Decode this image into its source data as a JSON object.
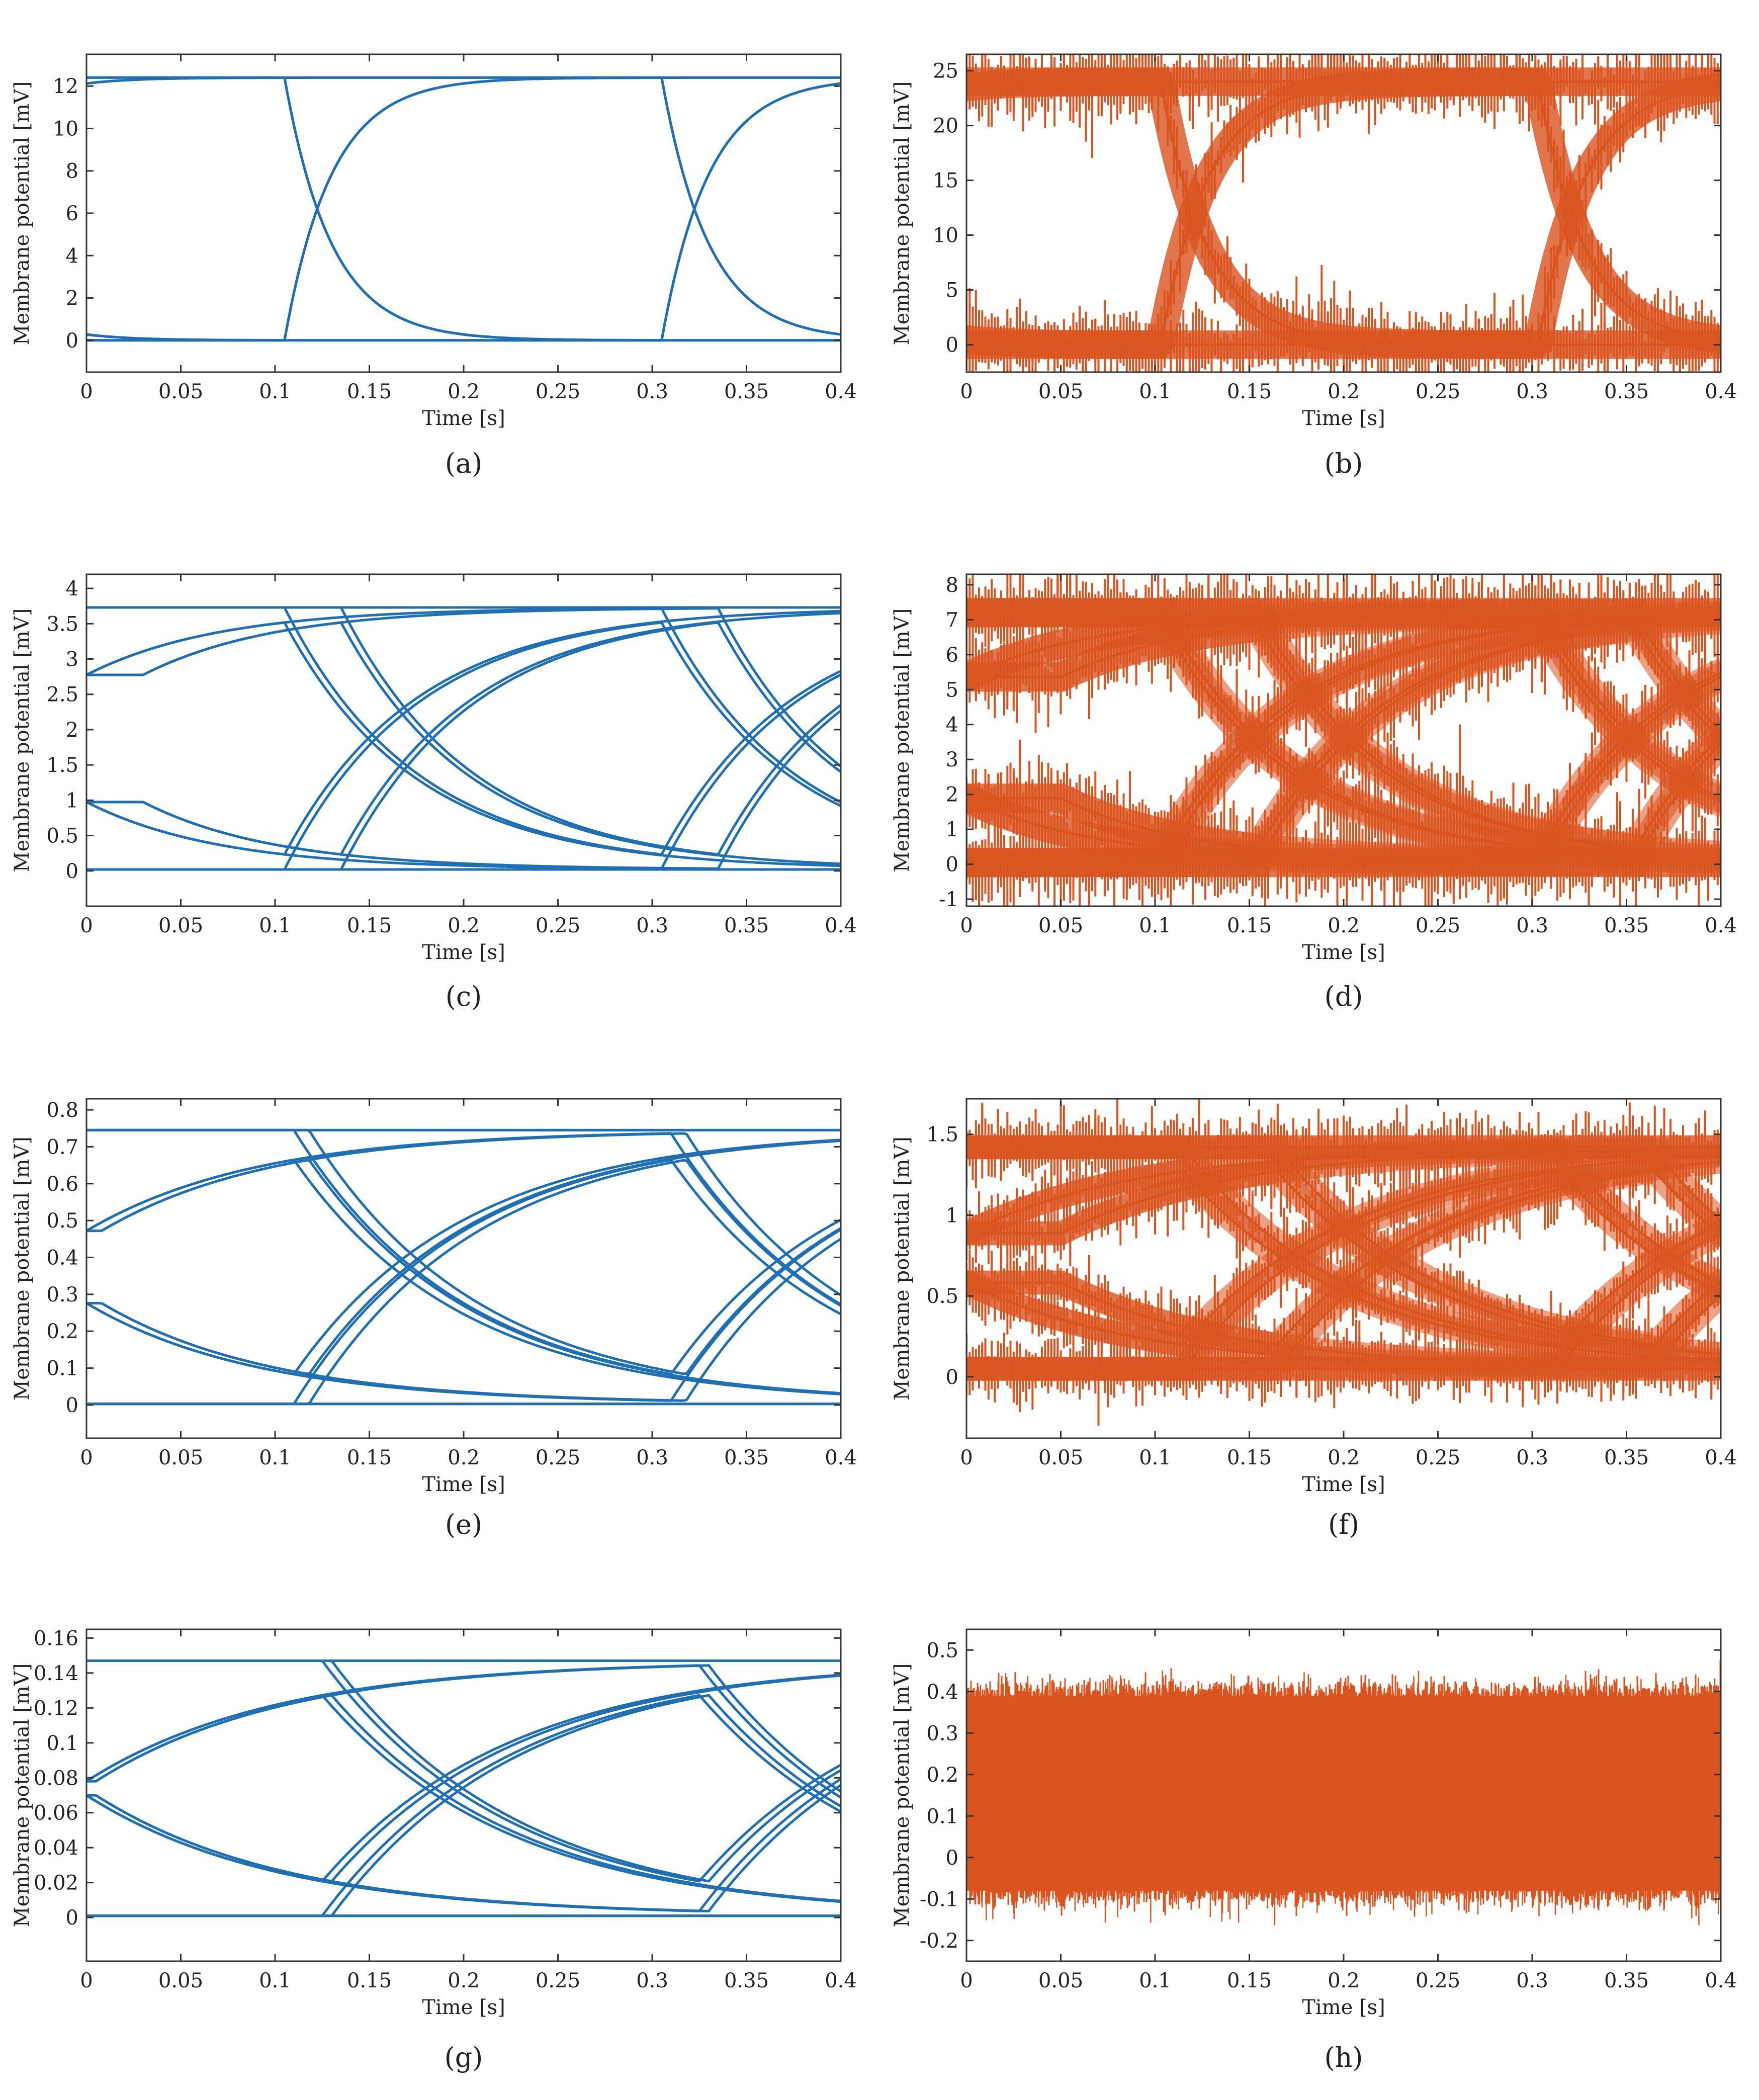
{
  "figure": {
    "panels": [
      "(a)",
      "(b)",
      "(c)",
      "(d)",
      "(e)",
      "(f)",
      "(g)",
      "(h)"
    ]
  },
  "colors": {
    "blue": "#1f6fb5",
    "orange": "#d9541f",
    "axis": "#333333"
  },
  "chart_data": [
    {
      "id": "a",
      "caption": "(a)",
      "type": "line",
      "style": "clean",
      "xlabel": "Time [s]",
      "ylabel": "Membrane potential [mV]",
      "xlim": [
        0,
        0.4
      ],
      "ylim": [
        -1.5,
        13.5
      ],
      "xticks": [
        0,
        0.05,
        0.1,
        0.15,
        0.2,
        0.25,
        0.3,
        0.35,
        0.4
      ],
      "xtick_labels": [
        "0",
        "0.05",
        "0.1",
        "0.15",
        "0.2",
        "0.25",
        "0.3",
        "0.35",
        "0.4"
      ],
      "yticks": [
        0,
        2,
        4,
        6,
        8,
        10,
        12
      ],
      "ytick_labels": [
        "0",
        "2",
        "4",
        "6",
        "8",
        "10",
        "12"
      ],
      "color": "#1f6fb5",
      "high": 12.4,
      "low": 0,
      "tau_rise": 0.025,
      "tau_fall": 0.025,
      "transitions": [
        0.105,
        0.305
      ],
      "pair_gap": 0,
      "noise": 0
    },
    {
      "id": "b",
      "caption": "(b)",
      "type": "line",
      "style": "noisy",
      "xlabel": "Time [s]",
      "ylabel": "Membrane potential [mV]",
      "xlim": [
        0,
        0.4
      ],
      "ylim": [
        -2.5,
        26.5
      ],
      "xticks": [
        0,
        0.05,
        0.1,
        0.15,
        0.2,
        0.25,
        0.3,
        0.35,
        0.4
      ],
      "xtick_labels": [
        "0",
        "0.05",
        "0.1",
        "0.15",
        "0.2",
        "0.25",
        "0.3",
        "0.35",
        "0.4"
      ],
      "yticks": [
        0,
        5,
        10,
        15,
        20,
        25
      ],
      "ytick_labels": [
        "0",
        "5",
        "10",
        "15",
        "20",
        "25"
      ],
      "color": "#d9541f",
      "high": 24,
      "low": 0,
      "tau_rise": 0.025,
      "tau_fall": 0.025,
      "transitions": [
        0.103,
        0.303
      ],
      "pair_gap": 0,
      "noise": 0.12
    },
    {
      "id": "c",
      "caption": "(c)",
      "type": "line",
      "style": "clean",
      "xlabel": "Time [s]",
      "ylabel": "Membrane potential [mV]",
      "xlim": [
        0,
        0.4
      ],
      "ylim": [
        -0.5,
        4.2
      ],
      "xticks": [
        0,
        0.05,
        0.1,
        0.15,
        0.2,
        0.25,
        0.3,
        0.35,
        0.4
      ],
      "xtick_labels": [
        "0",
        "0.05",
        "0.1",
        "0.15",
        "0.2",
        "0.25",
        "0.3",
        "0.35",
        "0.4"
      ],
      "yticks": [
        0,
        0.5,
        1,
        1.5,
        2,
        2.5,
        3,
        3.5,
        4
      ],
      "ytick_labels": [
        "0",
        "0.5",
        "1",
        "1.5",
        "2",
        "2.5",
        "3",
        "3.5",
        "4"
      ],
      "color": "#1f6fb5",
      "high": 3.73,
      "low": 0.02,
      "tau_rise": 0.07,
      "tau_fall": 0.07,
      "transitions": [
        0.105,
        0.305
      ],
      "pair_gap": 0.03,
      "noise": 0
    },
    {
      "id": "d",
      "caption": "(d)",
      "type": "line",
      "style": "noisy",
      "xlabel": "Time [s]",
      "ylabel": "Membrane potential [mV]",
      "xlim": [
        0,
        0.4
      ],
      "ylim": [
        -1.2,
        8.3
      ],
      "xticks": [
        0,
        0.05,
        0.1,
        0.15,
        0.2,
        0.25,
        0.3,
        0.35,
        0.4
      ],
      "xtick_labels": [
        "0",
        "0.05",
        "0.1",
        "0.15",
        "0.2",
        "0.25",
        "0.3",
        "0.35",
        "0.4"
      ],
      "yticks": [
        -1,
        0,
        1,
        2,
        3,
        4,
        5,
        6,
        7,
        8
      ],
      "ytick_labels": [
        "-1",
        "0",
        "1",
        "2",
        "3",
        "4",
        "5",
        "6",
        "7",
        "8"
      ],
      "color": "#d9541f",
      "high": 7.2,
      "low": 0.05,
      "tau_rise": 0.07,
      "tau_fall": 0.07,
      "transitions": [
        0.105,
        0.305
      ],
      "pair_gap": 0.05,
      "noise": 0.13
    },
    {
      "id": "e",
      "caption": "(e)",
      "type": "line",
      "style": "clean",
      "xlabel": "Time [s]",
      "ylabel": "Membrane potential [mV]",
      "xlim": [
        0,
        0.4
      ],
      "ylim": [
        -0.09,
        0.83
      ],
      "xticks": [
        0,
        0.05,
        0.1,
        0.15,
        0.2,
        0.25,
        0.3,
        0.35,
        0.4
      ],
      "xtick_labels": [
        "0",
        "0.05",
        "0.1",
        "0.15",
        "0.2",
        "0.25",
        "0.3",
        "0.35",
        "0.4"
      ],
      "yticks": [
        0,
        0.1,
        0.2,
        0.3,
        0.4,
        0.5,
        0.6,
        0.7,
        0.8
      ],
      "ytick_labels": [
        "0",
        "0.1",
        "0.2",
        "0.3",
        "0.4",
        "0.5",
        "0.6",
        "0.7",
        "0.8"
      ],
      "color": "#1f6fb5",
      "high": 0.745,
      "low": 0.003,
      "tau_rise": 0.09,
      "tau_fall": 0.09,
      "transitions": [
        0.11,
        0.31
      ],
      "pair_gap": 0.008,
      "noise": 0
    },
    {
      "id": "f",
      "caption": "(f)",
      "type": "line",
      "style": "noisy",
      "xlabel": "Time [s]",
      "ylabel": "Membrane potential [mV]",
      "xlim": [
        0,
        0.4
      ],
      "ylim": [
        -0.38,
        1.72
      ],
      "xticks": [
        0,
        0.05,
        0.1,
        0.15,
        0.2,
        0.25,
        0.3,
        0.35,
        0.4
      ],
      "xtick_labels": [
        "0",
        "0.05",
        "0.1",
        "0.15",
        "0.2",
        "0.25",
        "0.3",
        "0.35",
        "0.4"
      ],
      "yticks": [
        0,
        0.5,
        1,
        1.5
      ],
      "ytick_labels": [
        "0",
        "0.5",
        "1",
        "1.5"
      ],
      "color": "#d9541f",
      "high": 1.42,
      "low": 0.05,
      "tau_rise": 0.09,
      "tau_fall": 0.09,
      "transitions": [
        0.115,
        0.315
      ],
      "pair_gap": 0.05,
      "noise": 0.12
    },
    {
      "id": "g",
      "caption": "(g)",
      "type": "line",
      "style": "clean",
      "xlabel": "Time [s]",
      "ylabel": "Membrane potential [mV]",
      "xlim": [
        0,
        0.4
      ],
      "ylim": [
        -0.025,
        0.165
      ],
      "xticks": [
        0,
        0.05,
        0.1,
        0.15,
        0.2,
        0.25,
        0.3,
        0.35,
        0.4
      ],
      "xtick_labels": [
        "0",
        "0.05",
        "0.1",
        "0.15",
        "0.2",
        "0.25",
        "0.3",
        "0.35",
        "0.4"
      ],
      "yticks": [
        0,
        0.02,
        0.04,
        0.06,
        0.08,
        0.1,
        0.12,
        0.14,
        0.16
      ],
      "ytick_labels": [
        "0",
        "0.02",
        "0.04",
        "0.06",
        "0.08",
        "0.1",
        "0.12",
        "0.14",
        "0.16"
      ],
      "color": "#1f6fb5",
      "high": 0.147,
      "low": 0.001,
      "tau_rise": 0.1,
      "tau_fall": 0.1,
      "transitions": [
        0.125,
        0.325
      ],
      "pair_gap": 0.005,
      "noise": 0
    },
    {
      "id": "h",
      "caption": "(h)",
      "type": "line",
      "style": "band",
      "xlabel": "Time [s]",
      "ylabel": "Membrane potential [mV]",
      "xlim": [
        0,
        0.4
      ],
      "ylim": [
        -0.25,
        0.55
      ],
      "xticks": [
        0,
        0.05,
        0.1,
        0.15,
        0.2,
        0.25,
        0.3,
        0.35,
        0.4
      ],
      "xtick_labels": [
        "0",
        "0.05",
        "0.1",
        "0.15",
        "0.2",
        "0.25",
        "0.3",
        "0.35",
        "0.4"
      ],
      "yticks": [
        -0.2,
        -0.1,
        0,
        0.1,
        0.2,
        0.3,
        0.4,
        0.5
      ],
      "ytick_labels": [
        "-0.2",
        "-0.1",
        "0",
        "0.1",
        "0.2",
        "0.3",
        "0.4",
        "0.5"
      ],
      "color": "#d9541f",
      "band_low": -0.08,
      "band_high": 0.39,
      "spike_low": -0.18,
      "spike_high": 0.46
    }
  ]
}
